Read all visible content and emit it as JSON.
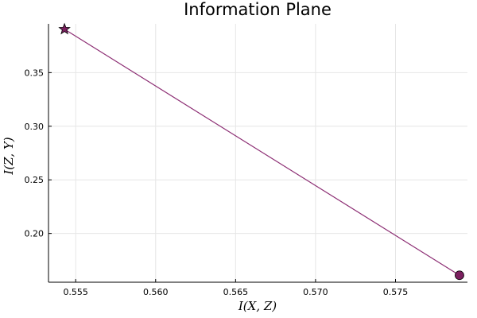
{
  "chart_data": {
    "type": "line",
    "title": "Information Plane",
    "xlabel": "I(X, Z)",
    "ylabel": "I(Z, Y)",
    "xlim": [
      0.5533,
      0.5795
    ],
    "ylim": [
      0.1545,
      0.3955
    ],
    "xticks": [
      0.555,
      0.56,
      0.565,
      0.57,
      0.575
    ],
    "xtick_labels": [
      "0.555",
      "0.560",
      "0.565",
      "0.570",
      "0.575"
    ],
    "yticks": [
      0.2,
      0.25,
      0.3,
      0.35
    ],
    "ytick_labels": [
      "0.20",
      "0.25",
      "0.30",
      "0.35"
    ],
    "grid": true,
    "legend": "none",
    "series": [
      {
        "color": "#8c2d73",
        "marker_color": "#7b1f5f",
        "x": [
          0.5543,
          0.579
        ],
        "y": [
          0.3905,
          0.161
        ],
        "markers": [
          "star",
          "circle"
        ]
      }
    ]
  }
}
